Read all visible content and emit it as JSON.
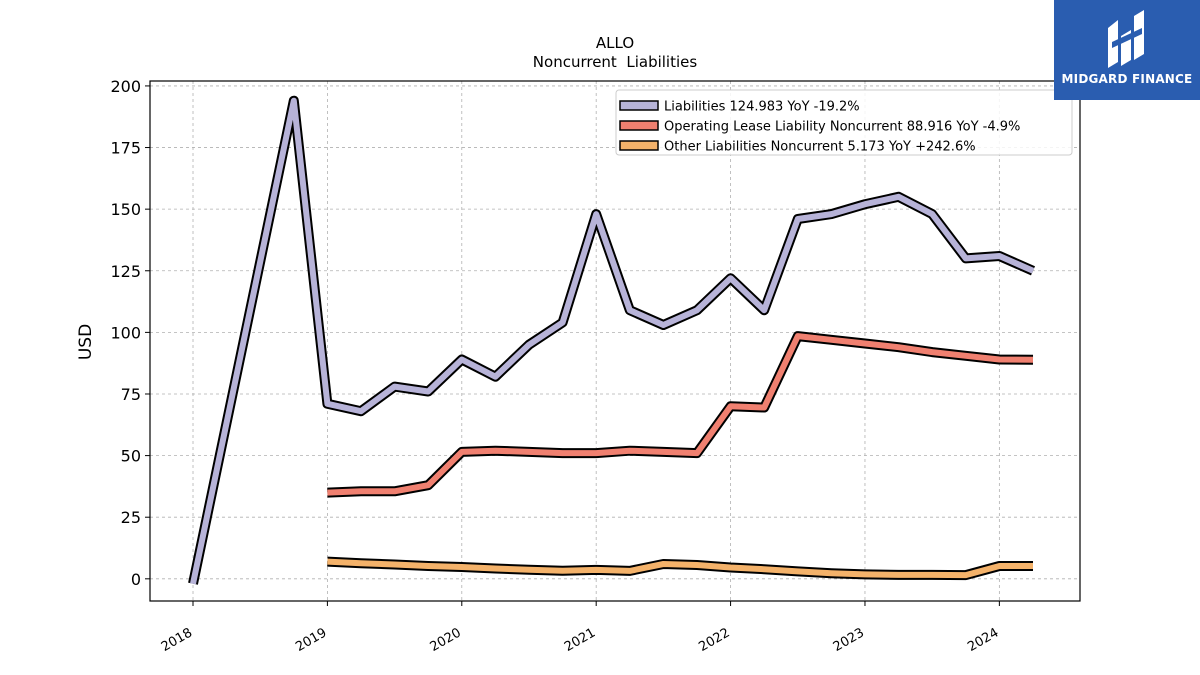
{
  "chart_data": {
    "type": "line",
    "title": "ALLO",
    "subtitle": "Noncurrent  Liabilities",
    "ylabel": "USD",
    "xlabel": "",
    "ylim": [
      -9,
      202
    ],
    "xlim": [
      2017.68,
      2024.6
    ],
    "yticks": [
      0,
      25,
      50,
      75,
      100,
      125,
      150,
      175,
      200
    ],
    "xticks": [
      "2018",
      "2019",
      "2020",
      "2021",
      "2022",
      "2023",
      "2024"
    ],
    "grid": true,
    "legend_position": "top-right",
    "series": [
      {
        "name": "Liabilities  124.983 YoY -19.2%",
        "color": "#b7b3d8",
        "x": [
          2018.0,
          2018.75,
          2019.0,
          2019.25,
          2019.5,
          2019.75,
          2020.0,
          2020.25,
          2020.5,
          2020.75,
          2021.0,
          2021.25,
          2021.5,
          2021.75,
          2022.0,
          2022.25,
          2022.5,
          2022.75,
          2023.0,
          2023.25,
          2023.5,
          2023.75,
          2024.0,
          2024.25
        ],
        "values": [
          -2,
          194,
          71,
          68,
          78,
          76,
          89,
          82,
          95,
          104,
          148,
          109,
          103,
          109,
          122,
          109,
          146,
          148,
          152,
          155,
          148,
          130,
          131,
          125
        ]
      },
      {
        "name": "Operating Lease Liability Noncurrent  88.916 YoY -4.9%",
        "color": "#f08070",
        "x": [
          2019.0,
          2019.25,
          2019.5,
          2019.75,
          2020.0,
          2020.25,
          2020.5,
          2020.75,
          2021.0,
          2021.25,
          2021.5,
          2021.75,
          2022.0,
          2022.25,
          2022.5,
          2022.75,
          2023.0,
          2023.25,
          2023.5,
          2023.75,
          2024.0,
          2024.25
        ],
        "values": [
          35,
          35.5,
          35.5,
          38,
          51.5,
          52,
          51.5,
          51,
          51,
          52,
          51.5,
          51,
          70,
          69.5,
          98.5,
          97,
          95.5,
          94,
          92,
          90.5,
          89,
          88.9
        ]
      },
      {
        "name": "Other Liabilities Noncurrent  5.173 YoY +242.6%",
        "color": "#f4b26a",
        "x": [
          2019.0,
          2019.25,
          2019.5,
          2019.75,
          2020.0,
          2020.25,
          2020.5,
          2020.75,
          2021.0,
          2021.25,
          2021.5,
          2021.75,
          2022.0,
          2022.25,
          2022.5,
          2022.75,
          2023.0,
          2023.25,
          2023.5,
          2023.75,
          2024.0,
          2024.25
        ],
        "values": [
          7,
          6.3,
          5.8,
          5.2,
          4.8,
          4.2,
          3.7,
          3.3,
          3.6,
          3.2,
          6,
          5.6,
          4.6,
          3.9,
          3.0,
          2.3,
          1.8,
          1.6,
          1.6,
          1.5,
          5.2,
          5.2
        ]
      }
    ]
  },
  "logo": {
    "text": "MIDGARD FINANCE"
  }
}
